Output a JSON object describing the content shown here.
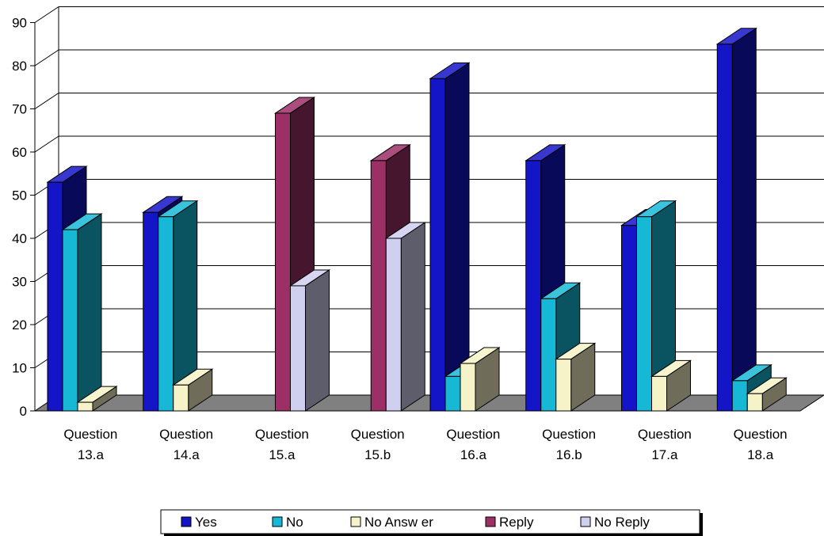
{
  "chart_data": {
    "type": "bar",
    "title": "",
    "xlabel": "",
    "ylabel": "",
    "ylim": [
      0,
      90
    ],
    "yticks": [
      0,
      10,
      20,
      30,
      40,
      50,
      60,
      70,
      80,
      90
    ],
    "grid": true,
    "legend_position": "bottom",
    "categories": [
      [
        "Question",
        "13.a"
      ],
      [
        "Question",
        "14.a"
      ],
      [
        "Question",
        "15.a"
      ],
      [
        "Question",
        "15.b"
      ],
      [
        "Question",
        "16.a"
      ],
      [
        "Question",
        "16.b"
      ],
      [
        "Question",
        "17.a"
      ],
      [
        "Question",
        "18.a"
      ]
    ],
    "series": [
      {
        "name": "Yes",
        "color": "#1515c8",
        "values": [
          53,
          46,
          null,
          null,
          77,
          58,
          43,
          85
        ]
      },
      {
        "name": "No",
        "color": "#16b8d6",
        "values": [
          42,
          45,
          null,
          null,
          8,
          26,
          45,
          7
        ]
      },
      {
        "name": "No Answ er",
        "color": "#f6f3c8",
        "values": [
          2,
          6,
          null,
          null,
          11,
          12,
          8,
          4
        ]
      },
      {
        "name": "Reply",
        "color": "#9c2f66",
        "values": [
          null,
          null,
          69,
          58,
          null,
          null,
          null,
          null
        ]
      },
      {
        "name": "No Reply",
        "color": "#cfcff0",
        "values": [
          null,
          null,
          29,
          40,
          null,
          null,
          null,
          null
        ]
      }
    ]
  }
}
